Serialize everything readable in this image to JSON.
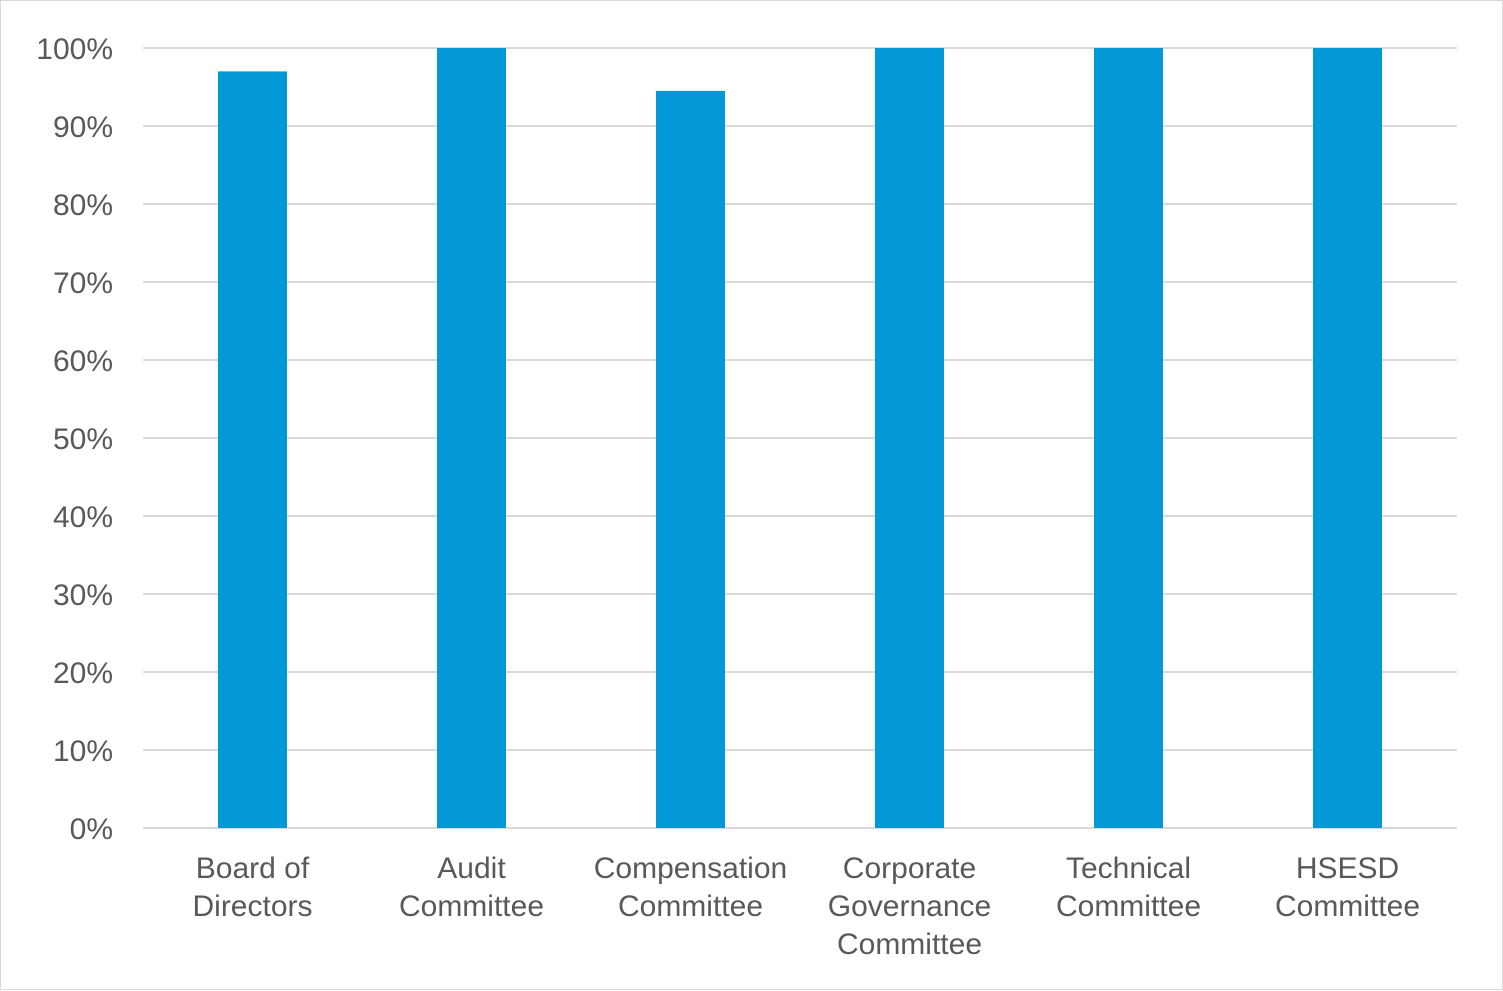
{
  "chart_data": {
    "type": "bar",
    "title": "",
    "xlabel": "",
    "ylabel": "",
    "categories": [
      [
        "Board of",
        "Directors"
      ],
      [
        "Audit",
        "Committee"
      ],
      [
        "Compensation",
        "Committee"
      ],
      [
        "Corporate",
        "Governance",
        "Committee"
      ],
      [
        "Technical",
        "Committee"
      ],
      [
        "HSESD",
        "Committee"
      ]
    ],
    "values": [
      97,
      100,
      94.5,
      100,
      100,
      100
    ],
    "ylim": [
      0,
      100
    ],
    "yticks": [
      "0%",
      "10%",
      "20%",
      "30%",
      "40%",
      "50%",
      "60%",
      "70%",
      "80%",
      "90%",
      "100%"
    ],
    "grid": true,
    "legend": "none",
    "bar_color": "#0499d6",
    "grid_color": "#d9d9d9",
    "label_color": "#595959"
  }
}
